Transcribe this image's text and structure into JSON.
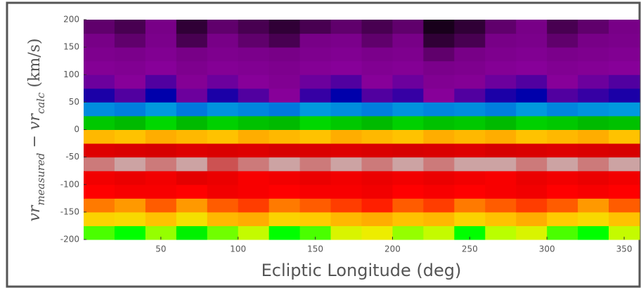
{
  "chart_data": {
    "type": "heatmap",
    "xlabel": "Ecliptic Longitude (deg)",
    "ylabel": {
      "parts": [
        "vr",
        "measured",
        " − vr",
        "calc",
        " (km/s)"
      ]
    },
    "colormap": "nipy_spectral",
    "xlim": [
      0,
      360
    ],
    "ylim": [
      -200,
      200
    ],
    "xticks": [
      50,
      100,
      150,
      200,
      250,
      300,
      350
    ],
    "yticks": [
      -200,
      -150,
      -100,
      -50,
      0,
      50,
      100,
      150,
      200
    ],
    "x_bins": [
      0,
      20,
      40,
      60,
      80,
      100,
      120,
      140,
      160,
      180,
      200,
      220,
      240,
      260,
      280,
      300,
      320,
      340,
      360
    ],
    "y_bins": [
      -200,
      -175,
      -150,
      -125,
      -100,
      -75,
      -50,
      -25,
      0,
      25,
      50,
      75,
      100,
      125,
      150,
      175,
      200
    ],
    "z": [
      [
        0.62,
        0.6,
        0.64,
        0.58,
        0.63,
        0.66,
        0.6,
        0.62,
        0.68,
        0.7,
        0.64,
        0.66,
        0.6,
        0.65,
        0.68,
        0.62,
        0.6,
        0.66
      ],
      [
        0.74,
        0.73,
        0.76,
        0.72,
        0.77,
        0.78,
        0.74,
        0.75,
        0.77,
        0.78,
        0.76,
        0.77,
        0.74,
        0.76,
        0.78,
        0.75,
        0.73,
        0.76
      ],
      [
        0.81,
        0.8,
        0.82,
        0.8,
        0.82,
        0.83,
        0.81,
        0.82,
        0.83,
        0.84,
        0.82,
        0.83,
        0.81,
        0.82,
        0.83,
        0.82,
        0.8,
        0.82
      ],
      [
        0.85,
        0.86,
        0.86,
        0.85,
        0.87,
        0.86,
        0.85,
        0.86,
        0.86,
        0.87,
        0.85,
        0.86,
        0.85,
        0.86,
        0.87,
        0.85,
        0.86,
        0.85
      ],
      [
        0.87,
        0.88,
        0.87,
        0.89,
        0.88,
        0.86,
        0.87,
        0.88,
        0.87,
        0.88,
        0.87,
        0.88,
        0.87,
        0.86,
        0.88,
        0.87,
        0.88,
        0.87
      ],
      [
        0.98,
        0.99,
        0.98,
        0.99,
        0.97,
        0.98,
        0.99,
        0.98,
        0.99,
        0.98,
        0.99,
        0.98,
        0.99,
        0.99,
        0.98,
        0.99,
        0.98,
        0.99
      ],
      [
        0.9,
        0.91,
        0.92,
        0.9,
        0.91,
        0.9,
        0.92,
        0.91,
        0.9,
        0.91,
        0.92,
        0.91,
        0.9,
        0.92,
        0.91,
        0.9,
        0.91,
        0.92
      ],
      [
        0.77,
        0.76,
        0.78,
        0.77,
        0.76,
        0.78,
        0.77,
        0.76,
        0.78,
        0.77,
        0.76,
        0.78,
        0.77,
        0.78,
        0.76,
        0.77,
        0.78,
        0.76
      ],
      [
        0.52,
        0.5,
        0.54,
        0.5,
        0.53,
        0.51,
        0.5,
        0.54,
        0.52,
        0.5,
        0.53,
        0.51,
        0.52,
        0.5,
        0.53,
        0.52,
        0.5,
        0.51
      ],
      [
        0.28,
        0.26,
        0.3,
        0.25,
        0.29,
        0.27,
        0.25,
        0.3,
        0.28,
        0.26,
        0.29,
        0.27,
        0.28,
        0.26,
        0.3,
        0.27,
        0.29,
        0.3
      ],
      [
        0.14,
        0.12,
        0.15,
        0.11,
        0.14,
        0.12,
        0.1,
        0.13,
        0.15,
        0.12,
        0.13,
        0.1,
        0.12,
        0.14,
        0.15,
        0.12,
        0.13,
        0.14
      ],
      [
        0.11,
        0.1,
        0.12,
        0.09,
        0.11,
        0.1,
        0.08,
        0.11,
        0.12,
        0.1,
        0.11,
        0.08,
        0.09,
        0.11,
        0.12,
        0.1,
        0.11,
        0.12
      ],
      [
        0.09,
        0.08,
        0.1,
        0.07,
        0.09,
        0.08,
        0.07,
        0.09,
        0.1,
        0.08,
        0.09,
        0.06,
        0.07,
        0.09,
        0.1,
        0.08,
        0.09,
        0.1
      ],
      [
        0.07,
        0.06,
        0.08,
        0.05,
        0.07,
        0.06,
        0.05,
        0.07,
        0.08,
        0.06,
        0.07,
        0.04,
        0.05,
        0.07,
        0.08,
        0.06,
        0.07,
        0.08
      ],
      [
        0.05,
        0.04,
        0.06,
        0.03,
        0.05,
        0.04,
        0.03,
        0.05,
        0.06,
        0.04,
        0.05,
        0.02,
        0.03,
        0.05,
        0.06,
        0.04,
        0.05,
        0.06
      ],
      [
        0.04,
        0.03,
        0.05,
        0.02,
        0.04,
        0.03,
        0.02,
        0.03,
        0.04,
        0.03,
        0.04,
        0.01,
        0.02,
        0.04,
        0.05,
        0.03,
        0.04,
        0.05
      ]
    ]
  }
}
